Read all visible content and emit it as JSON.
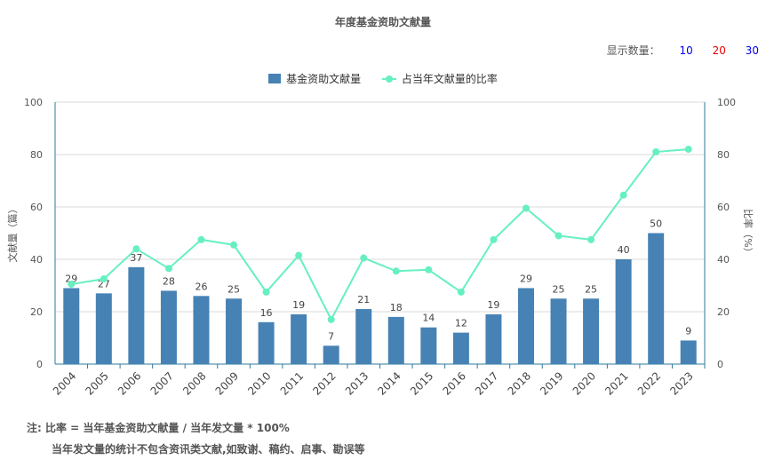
{
  "title": "年度基金资助文献量",
  "count_selector": {
    "label": "显示数量：",
    "options": [
      {
        "label": "10",
        "color": "#0000ee"
      },
      {
        "label": "20",
        "color": "#ee0000"
      },
      {
        "label": "30",
        "color": "#0000ee"
      }
    ]
  },
  "notes": {
    "line1": "注:   比率 = 当年基金资助文献量 / 当年发文量 * 100%",
    "line2": "当年发文量的统计不包含资讯类文献,如致谢、稿约、启事、勘误等"
  },
  "chart_data": {
    "type": "bar",
    "categories": [
      "2004",
      "2005",
      "2006",
      "2007",
      "2008",
      "2009",
      "2010",
      "2011",
      "2012",
      "2013",
      "2014",
      "2015",
      "2016",
      "2017",
      "2018",
      "2019",
      "2020",
      "2021",
      "2022",
      "2023"
    ],
    "series": [
      {
        "name": "基金资助文献量",
        "type": "bar",
        "axis": "left",
        "color": "#4682b4",
        "values": [
          29,
          27,
          37,
          28,
          26,
          25,
          16,
          19,
          7,
          21,
          18,
          14,
          12,
          19,
          29,
          25,
          25,
          40,
          50,
          9
        ]
      },
      {
        "name": "占当年文献量的比率",
        "type": "line",
        "axis": "right",
        "color": "#66f0c0",
        "values": [
          30.5,
          32.5,
          44,
          36.5,
          47.5,
          45.5,
          27.5,
          41.5,
          17,
          40.5,
          35.5,
          36,
          27.5,
          47.5,
          59.5,
          49,
          47.5,
          64.5,
          81,
          82
        ]
      }
    ],
    "ylabel": "文献量（篇）",
    "y2label": "比率（%）",
    "ylim": [
      0,
      100
    ],
    "y2lim": [
      0,
      100
    ],
    "yticks": [
      0,
      20,
      40,
      60,
      80,
      100
    ],
    "y2ticks": [
      0,
      20,
      40,
      60,
      80,
      100
    ],
    "grid": true,
    "legend_position": "top-center"
  }
}
